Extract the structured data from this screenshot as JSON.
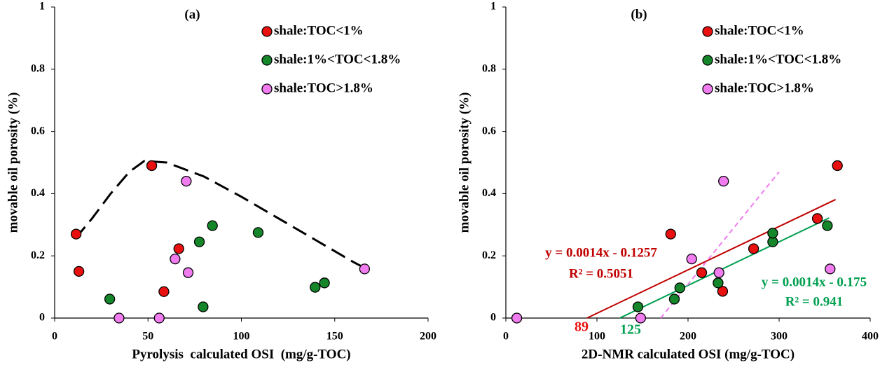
{
  "chart_data": [
    {
      "type": "scatter",
      "title": "(a)",
      "x_label": "Pyrolysis  calculated OSI  (mg/g-TOC)",
      "y_label": "movable oil porosity (%)",
      "xlim": [
        0,
        200
      ],
      "xticks": [
        0,
        50,
        100,
        150,
        200
      ],
      "ylim": [
        0,
        1
      ],
      "yticks": [
        0,
        0.2,
        0.4,
        0.6,
        0.8,
        1
      ],
      "series": [
        {
          "name": "shale:TOC<1%",
          "color": "#e8110f",
          "x": [
            11.5,
            13,
            52,
            66.5,
            58.5
          ],
          "values": [
            0.27,
            0.15,
            0.49,
            0.223,
            0.085
          ]
        },
        {
          "name": "shale:1%<TOC<1.8%",
          "color": "#15872a",
          "x": [
            29.5,
            77.5,
            84.5,
            109,
            79.5,
            139.5,
            144.5
          ],
          "values": [
            0.061,
            0.245,
            0.297,
            0.275,
            0.036,
            0.099,
            0.113
          ]
        },
        {
          "name": "shale:TOC>1.8%",
          "color": "#f07cf0",
          "x": [
            34.5,
            56,
            64.5,
            71.5,
            70.5,
            166
          ],
          "values": [
            0,
            0,
            0.19,
            0.146,
            0.44,
            0.158
          ]
        }
      ],
      "trendlines": [
        {
          "color": "#000000",
          "dash": "long",
          "x": [
            11,
            20,
            30,
            40,
            48,
            60,
            80,
            100,
            120,
            140,
            160,
            168
          ],
          "values": [
            0.255,
            0.32,
            0.4,
            0.47,
            0.505,
            0.5,
            0.455,
            0.39,
            0.32,
            0.25,
            0.18,
            0.155
          ]
        }
      ],
      "annotations": []
    },
    {
      "type": "scatter",
      "title": "(b)",
      "x_label": "2D-NMR calculated OSI (mg/g-TOC)",
      "y_label": "movable oil porosity (%)",
      "xlim": [
        0,
        400
      ],
      "xticks": [
        0,
        100,
        200,
        300,
        400
      ],
      "ylim": [
        0,
        1
      ],
      "yticks": [
        0,
        0.2,
        0.4,
        0.6,
        0.8,
        1
      ],
      "series": [
        {
          "name": "shale:TOC<1%",
          "color": "#e8110f",
          "x": [
            181,
            215,
            238,
            272,
            342,
            364
          ],
          "values": [
            0.27,
            0.146,
            0.086,
            0.223,
            0.32,
            0.49
          ]
        },
        {
          "name": "shale:1%<TOC<1.8%",
          "color": "#15872a",
          "x": [
            145,
            185,
            191,
            233,
            293,
            293,
            353
          ],
          "values": [
            0.036,
            0.061,
            0.097,
            0.113,
            0.245,
            0.273,
            0.297
          ]
        },
        {
          "name": "shale:TOC>1.8%",
          "color": "#f07cf0",
          "x": [
            12,
            148,
            204,
            234,
            239,
            356
          ],
          "values": [
            0,
            0,
            0.19,
            0.146,
            0.44,
            0.158
          ]
        }
      ],
      "trendlines": [
        {
          "color": "#c00000",
          "dash": "none",
          "x": [
            89,
            362
          ],
          "values": [
            0,
            0.381
          ]
        },
        {
          "color": "#00a050",
          "dash": "none",
          "x": [
            125,
            355
          ],
          "values": [
            0,
            0.322
          ]
        },
        {
          "color": "#f07cf0",
          "dash": "short",
          "x": [
            170,
            300
          ],
          "values": [
            0,
            0.47
          ]
        }
      ],
      "annotations": [
        {
          "text": "y = 0.0014x - 0.1257",
          "color": "#c00000"
        },
        {
          "text": "R² = 0.5051",
          "color": "#c00000"
        },
        {
          "text": "y = 0.0014x - 0.175",
          "color": "#00a050"
        },
        {
          "text": "R² = 0.941",
          "color": "#00a050"
        },
        {
          "text": "89",
          "color": "#e8110f"
        },
        {
          "text": "125",
          "color": "#00a050"
        }
      ]
    }
  ]
}
